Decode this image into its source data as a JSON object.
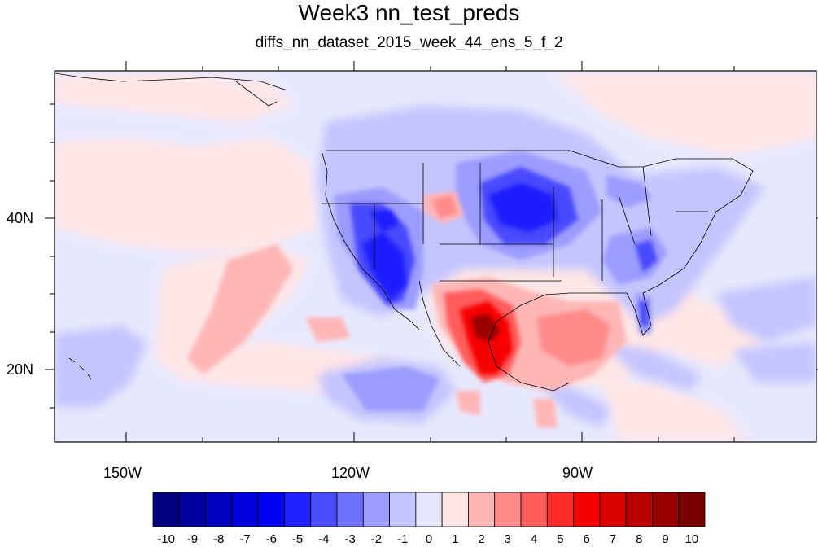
{
  "title": "Week3 nn_test_preds",
  "subtitle": "diffs_nn_dataset_2015_week_44_ens_5_f_2",
  "axes": {
    "lon_labels": [
      "150W",
      "120W",
      "90W"
    ],
    "lat_labels": [
      "40N",
      "20N"
    ]
  },
  "colorbar": {
    "labels": [
      "-10",
      "-9",
      "-8",
      "-7",
      "-6",
      "-5",
      "-4",
      "-3",
      "-2",
      "-1",
      "0",
      "1",
      "2",
      "3",
      "4",
      "5",
      "6",
      "7",
      "8",
      "9",
      "10"
    ],
    "colors": [
      "#000080",
      "#00009e",
      "#0000bd",
      "#0000dc",
      "#0000f5",
      "#1f1fff",
      "#4a4aff",
      "#7171ff",
      "#9c9cff",
      "#c4c4ff",
      "#e6e6ff",
      "#ffe6e6",
      "#ffb6b6",
      "#ff8a8a",
      "#ff5c5c",
      "#ff2b2b",
      "#f70000",
      "#d90000",
      "#b80000",
      "#990000",
      "#7a0000"
    ]
  },
  "colors": {
    "ocean_bg": "#e8e8fd",
    "warm_light": "#ffe6e6"
  }
}
